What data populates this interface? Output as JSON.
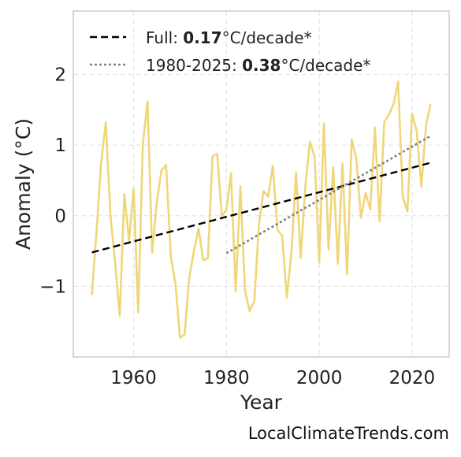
{
  "chart_data": {
    "type": "line",
    "xlabel": "Year",
    "ylabel": "Anomaly (°C)",
    "xlim": [
      1947,
      2028
    ],
    "ylim": [
      -2.0,
      2.9
    ],
    "x_ticks": [
      1960,
      1980,
      2000,
      2020
    ],
    "y_ticks": [
      -1,
      0,
      1,
      2
    ],
    "y_tick_labels": [
      "−1",
      "0",
      "1",
      "2"
    ],
    "grid": true,
    "legend_position": "top-left",
    "series": [
      {
        "name": "",
        "kind": "annual-anomaly",
        "color": "#f0d678",
        "style": "solid",
        "x": [
          1951,
          1952,
          1953,
          1954,
          1955,
          1956,
          1957,
          1958,
          1959,
          1960,
          1961,
          1962,
          1963,
          1964,
          1965,
          1966,
          1967,
          1968,
          1969,
          1970,
          1971,
          1972,
          1973,
          1974,
          1975,
          1976,
          1977,
          1978,
          1979,
          1980,
          1981,
          1982,
          1983,
          1984,
          1985,
          1986,
          1987,
          1988,
          1989,
          1990,
          1991,
          1992,
          1993,
          1994,
          1995,
          1996,
          1997,
          1998,
          1999,
          2000,
          2001,
          2002,
          2003,
          2004,
          2005,
          2006,
          2007,
          2008,
          2009,
          2010,
          2011,
          2012,
          2013,
          2014,
          2015,
          2016,
          2017,
          2018,
          2019,
          2020,
          2021,
          2022,
          2023,
          2024
        ],
        "y": [
          -1.12,
          -0.23,
          0.75,
          1.32,
          0.02,
          -0.65,
          -1.42,
          0.31,
          -0.35,
          0.38,
          -1.37,
          1.02,
          1.62,
          -0.52,
          0.2,
          0.64,
          0.72,
          -0.57,
          -0.96,
          -1.73,
          -1.68,
          -0.87,
          -0.5,
          -0.18,
          -0.63,
          -0.6,
          0.84,
          0.88,
          0.0,
          0.08,
          0.6,
          -1.07,
          0.42,
          -1.06,
          -1.35,
          -1.21,
          -0.12,
          0.35,
          0.27,
          0.71,
          -0.2,
          -0.28,
          -1.16,
          -0.52,
          0.61,
          -0.6,
          0.41,
          1.05,
          0.84,
          -0.66,
          1.31,
          -0.48,
          0.69,
          -0.68,
          0.74,
          -0.83,
          1.08,
          0.8,
          -0.03,
          0.32,
          0.09,
          1.25,
          -0.08,
          1.33,
          1.43,
          1.58,
          1.9,
          0.27,
          0.06,
          1.45,
          1.2,
          0.41,
          1.28,
          1.58
        ]
      },
      {
        "name": "Full",
        "color": "#000000",
        "style": "dashed",
        "x": [
          1951,
          2024
        ],
        "y": [
          -0.52,
          0.75
        ]
      },
      {
        "name": "1980-2025",
        "color": "#808080",
        "style": "dotted",
        "x": [
          1980,
          2024
        ],
        "y": [
          -0.53,
          1.13
        ]
      }
    ],
    "legend": [
      {
        "style": "dashed",
        "color": "#000000",
        "prefix": "Full: ",
        "value": "0.17",
        "suffix": "°C/decade*"
      },
      {
        "style": "dotted",
        "color": "#808080",
        "prefix": "1980-2025: ",
        "value": "0.38",
        "suffix": "°C/decade*"
      }
    ]
  },
  "watermark": "LocalClimateTrends.com"
}
